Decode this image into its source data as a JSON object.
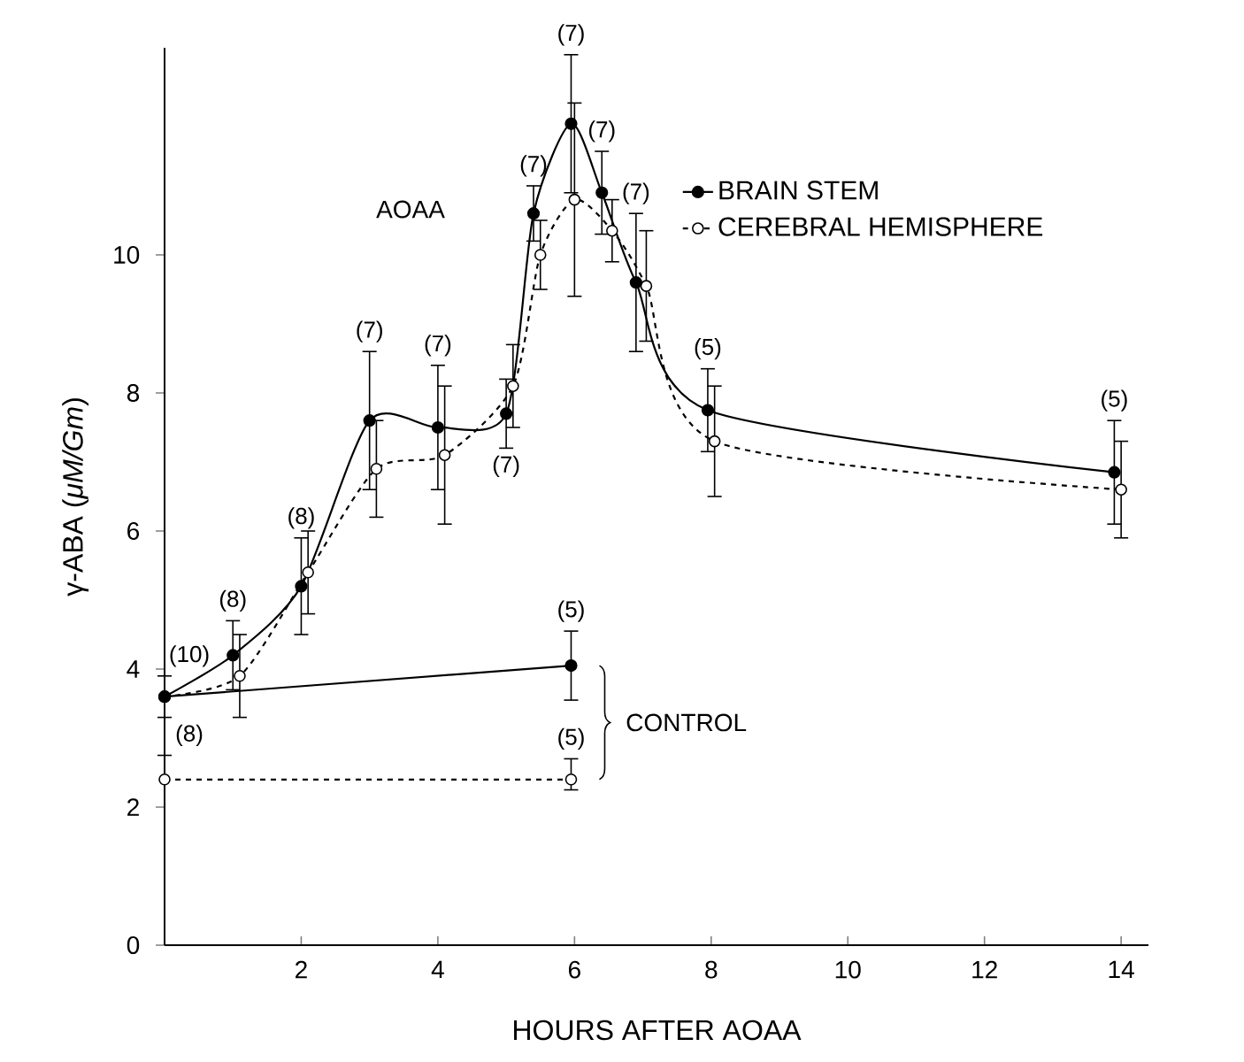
{
  "chart_data": {
    "type": "line",
    "xlabel": "HOURS AFTER AOAA",
    "ylabel": "γ-ABA (*μM/Gm*)",
    "xlim": [
      0,
      14.4
    ],
    "ylim": [
      0,
      13
    ],
    "xticks": [
      2,
      4,
      6,
      8,
      10,
      12,
      14
    ],
    "yticks": [
      0,
      2,
      4,
      6,
      8,
      10
    ],
    "marker": "circle",
    "legend": "top right",
    "grid": false,
    "series": [
      {
        "name": "CEREBRAL HEMISPHERE",
        "color": "#000000",
        "line_style": "dashed",
        "x": [
          0,
          1.1,
          2.1,
          3.1,
          4.1,
          5.1,
          5.5,
          6,
          6.55,
          7.05,
          8.05,
          14
        ],
        "values": [
          3.6,
          3.9,
          5.4,
          6.9,
          7.1,
          8.1,
          10,
          10.8,
          10.35,
          9.55,
          7.3,
          6.6
        ],
        "errors": [
          null,
          0.6,
          0.6,
          0.7,
          1.0,
          0.6,
          0.5,
          1.4,
          0.45,
          0.8,
          0.8,
          0.7
        ]
      },
      {
        "name": "BRAIN STEM",
        "color": "#000000",
        "line_style": "solid",
        "x": [
          0,
          1,
          2,
          3,
          4,
          5,
          5.4,
          5.95,
          6.4,
          6.9,
          7.95,
          13.9
        ],
        "values": [
          3.6,
          4.2,
          5.2,
          7.6,
          7.5,
          7.7,
          10.6,
          11.9,
          10.9,
          9.6,
          7.75,
          6.85
        ],
        "errors": [
          null,
          0.5,
          0.7,
          1.0,
          0.9,
          0.5,
          0.4,
          1.0,
          0.6,
          1.0,
          0.6,
          0.75
        ]
      },
      {
        "color": "#000000",
        "line_style": "dashed",
        "x": [
          0,
          5.95
        ],
        "values": [
          2.4,
          2.4
        ],
        "errors": [
          [
            2.4,
            2.75
          ],
          [
            2.25,
            2.7
          ]
        ]
      },
      {
        "color": "#000000",
        "line_style": "solid",
        "x": [
          0,
          5.95
        ],
        "values": [
          3.6,
          4.05
        ],
        "errors": [
          [
            3.3,
            3.9
          ],
          [
            3.55,
            4.55
          ]
        ]
      }
    ],
    "annotations": [
      {
        "text": "(10)",
        "x": 0,
        "y": 3.6
      },
      {
        "text": "(8)",
        "x": 1,
        "y": 4.2
      },
      {
        "text": "(8)",
        "x": 2,
        "y": 5.2
      },
      {
        "text": "(7)",
        "x": 3,
        "y": 8.6
      },
      {
        "text": "(7)",
        "x": 4,
        "y": 8.4
      },
      {
        "text": "(7)",
        "x": 5,
        "y": 7.7
      },
      {
        "text": "(7)",
        "x": 5.4,
        "y": 10.6
      },
      {
        "text": "(7)",
        "x": 5.95,
        "y": 12.9
      },
      {
        "text": "(7)",
        "x": 6.4,
        "y": 10.9
      },
      {
        "text": "(7)",
        "x": 6.9,
        "y": 10.6
      },
      {
        "text": "(5)",
        "x": 7.95,
        "y": 7.75
      },
      {
        "text": "(5)",
        "x": 13.9,
        "y": 6.85
      },
      {
        "text": "(5)",
        "x": 5.95,
        "y": 4.05
      },
      {
        "text": "(5)",
        "x": 5.95,
        "y": 2.4
      },
      {
        "text": "(8)",
        "x": 0,
        "y": 2.4
      },
      "AOAA",
      "CONTROL"
    ]
  }
}
